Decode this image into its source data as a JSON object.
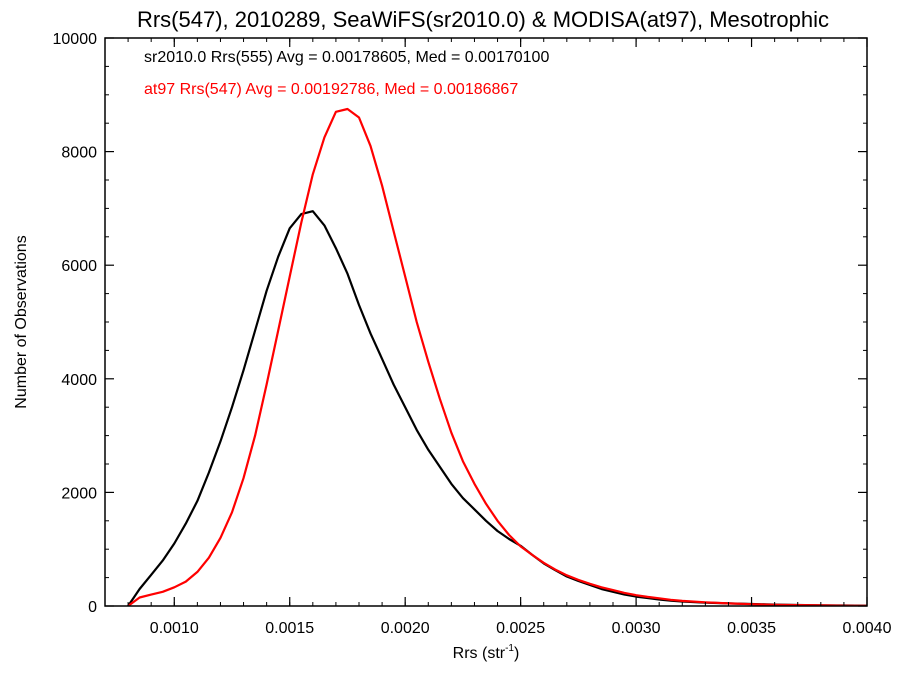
{
  "chart_data": {
    "type": "line",
    "title": "Rrs(547), 2010289, SeaWiFS(sr2010.0) & MODISA(at97), Mesotrophic",
    "xlabel": "Rrs (str",
    "xlabel_sup": "-1",
    "xlabel_close": ")",
    "ylabel": "Number of Observations",
    "xlim": [
      0.0007,
      0.004
    ],
    "ylim": [
      0,
      10000
    ],
    "x_ticks": [
      {
        "value": 0.001,
        "label": "0.0010"
      },
      {
        "value": 0.0015,
        "label": "0.0015"
      },
      {
        "value": 0.002,
        "label": "0.0020"
      },
      {
        "value": 0.0025,
        "label": "0.0025"
      },
      {
        "value": 0.003,
        "label": "0.0030"
      },
      {
        "value": 0.0035,
        "label": "0.0035"
      },
      {
        "value": 0.004,
        "label": "0.0040"
      }
    ],
    "y_ticks": [
      {
        "value": 0,
        "label": "0"
      },
      {
        "value": 2000,
        "label": "2000"
      },
      {
        "value": 4000,
        "label": "4000"
      },
      {
        "value": 6000,
        "label": "6000"
      },
      {
        "value": 8000,
        "label": "8000"
      },
      {
        "value": 10000,
        "label": "10000"
      }
    ],
    "annotations": [
      {
        "text": "sr2010.0 Rrs(555) Avg = 0.00178605, Med = 0.00170100",
        "color": "#000000"
      },
      {
        "text": "at97 Rrs(547) Avg = 0.00192786, Med = 0.00186867",
        "color": "#ff0000"
      }
    ],
    "series": [
      {
        "color": "#000000",
        "x": [
          0.0008,
          0.00085,
          0.0009,
          0.00095,
          0.001,
          0.00105,
          0.0011,
          0.00115,
          0.0012,
          0.00125,
          0.0013,
          0.00135,
          0.0014,
          0.00145,
          0.0015,
          0.00155,
          0.0016,
          0.00165,
          0.0017,
          0.00175,
          0.0018,
          0.00185,
          0.0019,
          0.00195,
          0.002,
          0.00205,
          0.0021,
          0.00215,
          0.0022,
          0.00225,
          0.0023,
          0.00235,
          0.0024,
          0.00245,
          0.0025,
          0.00255,
          0.0026,
          0.00265,
          0.0027,
          0.00275,
          0.0028,
          0.00285,
          0.0029,
          0.00295,
          0.003,
          0.00305,
          0.0031,
          0.00315,
          0.0032,
          0.0033,
          0.0034,
          0.0035,
          0.0036,
          0.0037,
          0.0038,
          0.0039,
          0.004
        ],
        "y": [
          0,
          300,
          550,
          800,
          1100,
          1450,
          1850,
          2350,
          2900,
          3500,
          4150,
          4850,
          5550,
          6150,
          6650,
          6900,
          6950,
          6700,
          6300,
          5850,
          5300,
          4800,
          4350,
          3900,
          3500,
          3100,
          2750,
          2450,
          2150,
          1900,
          1700,
          1500,
          1320,
          1180,
          1060,
          900,
          750,
          630,
          520,
          440,
          370,
          300,
          250,
          200,
          165,
          140,
          115,
          95,
          80,
          60,
          45,
          35,
          25,
          18,
          12,
          8,
          5
        ]
      },
      {
        "color": "#ff0000",
        "x": [
          0.0008,
          0.00085,
          0.0009,
          0.00095,
          0.001,
          0.00105,
          0.0011,
          0.00115,
          0.0012,
          0.00125,
          0.0013,
          0.00135,
          0.0014,
          0.00145,
          0.0015,
          0.00155,
          0.0016,
          0.00165,
          0.0017,
          0.00175,
          0.0018,
          0.00185,
          0.0019,
          0.00195,
          0.002,
          0.00205,
          0.0021,
          0.00215,
          0.0022,
          0.00225,
          0.0023,
          0.00235,
          0.0024,
          0.00245,
          0.0025,
          0.00255,
          0.0026,
          0.00265,
          0.0027,
          0.00275,
          0.0028,
          0.00285,
          0.0029,
          0.00295,
          0.003,
          0.00305,
          0.0031,
          0.00315,
          0.0032,
          0.0033,
          0.0034,
          0.0035,
          0.0036,
          0.0037,
          0.0038,
          0.0039,
          0.004
        ],
        "y": [
          0,
          150,
          200,
          250,
          330,
          430,
          600,
          850,
          1200,
          1650,
          2250,
          3000,
          3900,
          4850,
          5800,
          6750,
          7600,
          8250,
          8700,
          8750,
          8600,
          8100,
          7400,
          6600,
          5800,
          5000,
          4300,
          3650,
          3050,
          2550,
          2150,
          1800,
          1500,
          1250,
          1050,
          900,
          760,
          640,
          540,
          460,
          390,
          330,
          280,
          230,
          190,
          160,
          135,
          110,
          90,
          65,
          45,
          32,
          22,
          15,
          10,
          6,
          4
        ]
      }
    ],
    "grid": false,
    "legend": "none"
  }
}
